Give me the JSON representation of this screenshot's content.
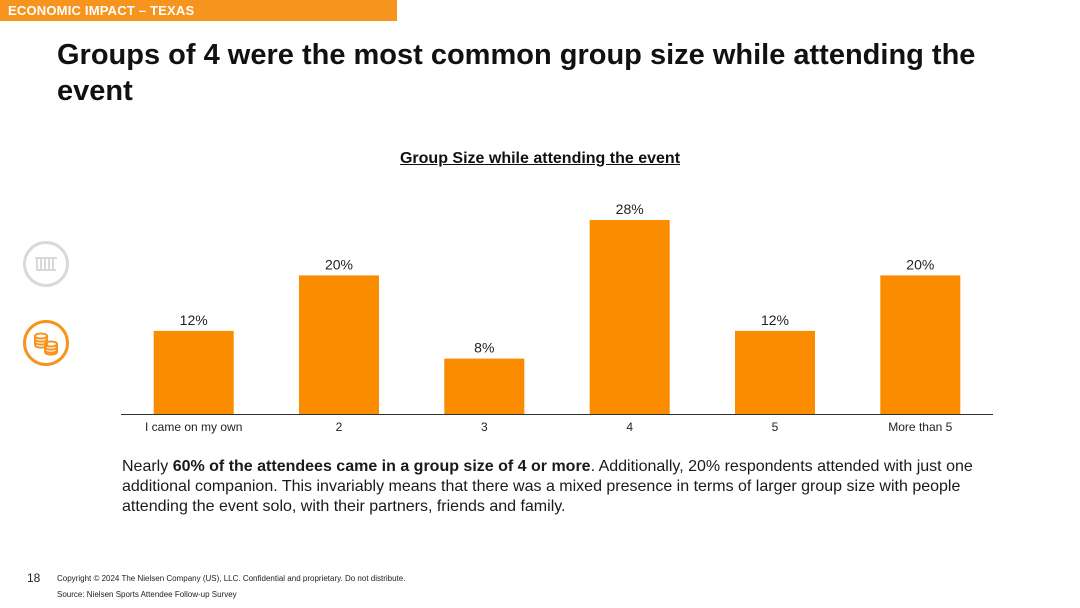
{
  "header": {
    "section_label": "ECONOMIC IMPACT – TEXAS"
  },
  "headline": "Groups of 4 were the most common group size while attending the event",
  "side_icons": [
    "stadium-icon",
    "coins-icon"
  ],
  "colors": {
    "accent": "#f7941d",
    "bar": "#fb8c00",
    "icon_inactive": "#d9d9d9"
  },
  "chart_data": {
    "type": "bar",
    "title": "Group Size while attending the event",
    "categories": [
      "I came on my own",
      "2",
      "3",
      "4",
      "5",
      "More than 5"
    ],
    "values": [
      12,
      20,
      8,
      28,
      12,
      20
    ],
    "value_labels": [
      "12%",
      "20%",
      "8%",
      "28%",
      "12%",
      "20%"
    ],
    "unit": "%",
    "xlabel": "",
    "ylabel": "",
    "ylim": [
      0,
      30
    ],
    "grid": false,
    "legend": "none"
  },
  "summary": {
    "intro": "Nearly ",
    "bold": "60% of the attendees came in a group size of 4 or more",
    "rest": ". Additionally, 20% respondents attended with just one additional companion. This invariably means that there was a mixed presence in terms of larger group size with people attending the event solo, with their partners, friends and family."
  },
  "footer": {
    "page_number": "18",
    "copyright": "Copyright © 2024 The Nielsen Company (US), LLC. Confidential and proprietary. Do not distribute.",
    "source": "Source: Nielsen Sports Attendee Follow-up Survey"
  }
}
